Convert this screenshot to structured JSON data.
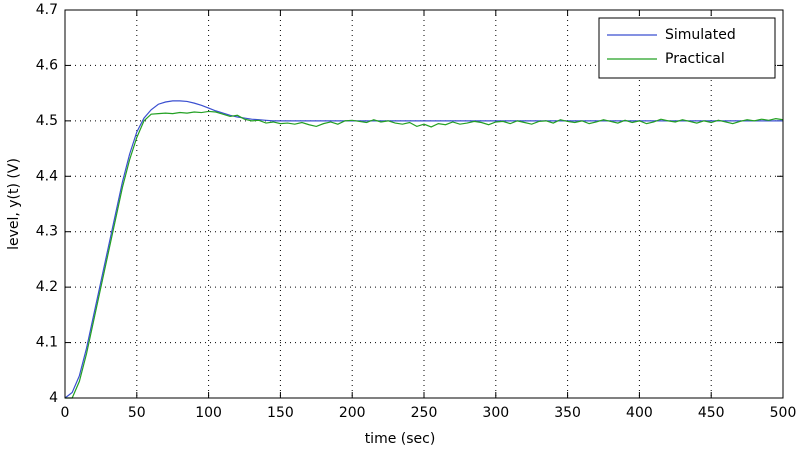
{
  "chart_data": {
    "type": "line",
    "xlabel": "time (sec)",
    "ylabel": "level, y(t) (V)",
    "x": [
      0,
      5,
      10,
      15,
      20,
      25,
      30,
      35,
      40,
      45,
      50,
      55,
      60,
      65,
      70,
      75,
      80,
      85,
      90,
      95,
      100,
      105,
      110,
      115,
      120,
      125,
      130,
      135,
      140,
      145,
      150,
      155,
      160,
      165,
      170,
      175,
      180,
      185,
      190,
      195,
      200,
      205,
      210,
      215,
      220,
      225,
      230,
      235,
      240,
      245,
      250,
      255,
      260,
      265,
      270,
      275,
      280,
      285,
      290,
      295,
      300,
      305,
      310,
      315,
      320,
      325,
      330,
      335,
      340,
      345,
      350,
      355,
      360,
      365,
      370,
      375,
      380,
      385,
      390,
      395,
      400,
      405,
      410,
      415,
      420,
      425,
      430,
      435,
      440,
      445,
      450,
      455,
      460,
      465,
      470,
      475,
      480,
      485,
      490,
      495,
      500
    ],
    "series": [
      {
        "name": "Simulated",
        "color": "#3a4fd0",
        "values": [
          4.0,
          4.01,
          4.04,
          4.09,
          4.15,
          4.21,
          4.27,
          4.33,
          4.39,
          4.44,
          4.48,
          4.505,
          4.52,
          4.53,
          4.534,
          4.536,
          4.536,
          4.535,
          4.532,
          4.528,
          4.523,
          4.518,
          4.514,
          4.51,
          4.507,
          4.505,
          4.503,
          4.502,
          4.501,
          4.5,
          4.5,
          4.5,
          4.5,
          4.5,
          4.5,
          4.5,
          4.5,
          4.5,
          4.5,
          4.5,
          4.5,
          4.5,
          4.5,
          4.5,
          4.5,
          4.5,
          4.5,
          4.5,
          4.5,
          4.5,
          4.5,
          4.5,
          4.5,
          4.5,
          4.5,
          4.5,
          4.5,
          4.5,
          4.5,
          4.5,
          4.5,
          4.5,
          4.5,
          4.5,
          4.5,
          4.5,
          4.5,
          4.5,
          4.5,
          4.5,
          4.5,
          4.5,
          4.5,
          4.5,
          4.5,
          4.5,
          4.5,
          4.5,
          4.5,
          4.5,
          4.5,
          4.5,
          4.5,
          4.5,
          4.5,
          4.5,
          4.5,
          4.5,
          4.5,
          4.5,
          4.5,
          4.5,
          4.5,
          4.5,
          4.5,
          4.5,
          4.5,
          4.5,
          4.5,
          4.5,
          4.5
        ]
      },
      {
        "name": "Practical",
        "color": "#23a023",
        "values": [
          4.0,
          4.0,
          4.03,
          4.08,
          4.14,
          4.2,
          4.26,
          4.32,
          4.38,
          4.43,
          4.47,
          4.5,
          4.512,
          4.513,
          4.514,
          4.513,
          4.515,
          4.514,
          4.516,
          4.515,
          4.517,
          4.516,
          4.512,
          4.508,
          4.51,
          4.503,
          4.5,
          4.501,
          4.496,
          4.498,
          4.495,
          4.496,
          4.494,
          4.497,
          4.493,
          4.49,
          4.495,
          4.498,
          4.494,
          4.5,
          4.501,
          4.499,
          4.497,
          4.502,
          4.498,
          4.5,
          4.496,
          4.494,
          4.497,
          4.49,
          4.494,
          4.489,
          4.495,
          4.493,
          4.498,
          4.494,
          4.496,
          4.499,
          4.497,
          4.493,
          4.498,
          4.499,
          4.495,
          4.5,
          4.497,
          4.494,
          4.499,
          4.5,
          4.496,
          4.502,
          4.499,
          4.497,
          4.5,
          4.495,
          4.498,
          4.502,
          4.499,
          4.496,
          4.501,
          4.497,
          4.5,
          4.495,
          4.498,
          4.503,
          4.5,
          4.498,
          4.502,
          4.499,
          4.496,
          4.5,
          4.497,
          4.501,
          4.498,
          4.495,
          4.499,
          4.502,
          4.5,
          4.503,
          4.501,
          4.504,
          4.502
        ]
      }
    ],
    "xlim": [
      0,
      500
    ],
    "xticks": [
      0,
      50,
      100,
      150,
      200,
      250,
      300,
      350,
      400,
      450,
      500
    ],
    "ylim": [
      4,
      4.7
    ],
    "yticks": [
      4,
      4.1,
      4.2,
      4.3,
      4.4,
      4.5,
      4.6,
      4.7
    ],
    "grid": true,
    "legend": "upper right"
  }
}
